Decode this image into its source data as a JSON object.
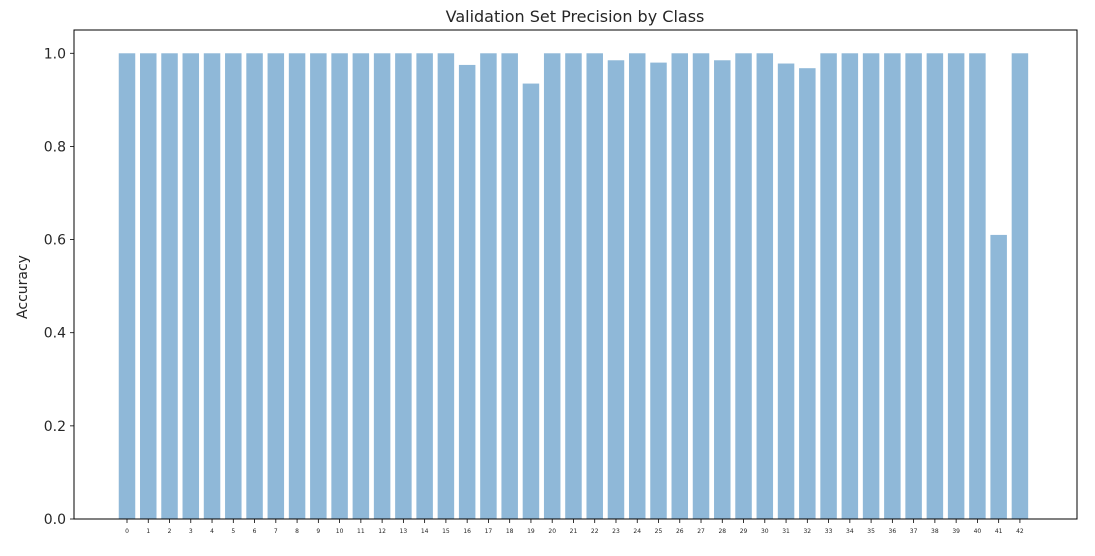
{
  "chart_data": {
    "type": "bar",
    "title": "Validation Set Precision by Class",
    "xlabel": "",
    "ylabel": "Accuracy",
    "ylim": [
      0,
      1.05
    ],
    "yticks": [
      "0.0",
      "0.2",
      "0.4",
      "0.6",
      "0.8",
      "1.0"
    ],
    "ytick_values": [
      0,
      0.2,
      0.4,
      0.6,
      0.8,
      1.0
    ],
    "categories": [
      "0",
      "1",
      "2",
      "3",
      "4",
      "5",
      "6",
      "7",
      "8",
      "9",
      "10",
      "11",
      "12",
      "13",
      "14",
      "15",
      "16",
      "17",
      "18",
      "19",
      "20",
      "21",
      "22",
      "23",
      "24",
      "25",
      "26",
      "27",
      "28",
      "29",
      "30",
      "31",
      "32",
      "33",
      "34",
      "35",
      "36",
      "37",
      "38",
      "39",
      "40",
      "41",
      "42"
    ],
    "values": [
      1.0,
      1.0,
      1.0,
      1.0,
      1.0,
      1.0,
      1.0,
      1.0,
      1.0,
      1.0,
      1.0,
      1.0,
      1.0,
      1.0,
      1.0,
      1.0,
      0.975,
      1.0,
      1.0,
      0.935,
      1.0,
      1.0,
      1.0,
      0.985,
      1.0,
      0.98,
      1.0,
      1.0,
      0.985,
      1.0,
      1.0,
      0.978,
      0.968,
      1.0,
      1.0,
      1.0,
      1.0,
      1.0,
      1.0,
      1.0,
      1.0,
      0.61,
      1.0
    ],
    "bar_color": "#8fb8d8",
    "grid": false,
    "legend": "none"
  }
}
